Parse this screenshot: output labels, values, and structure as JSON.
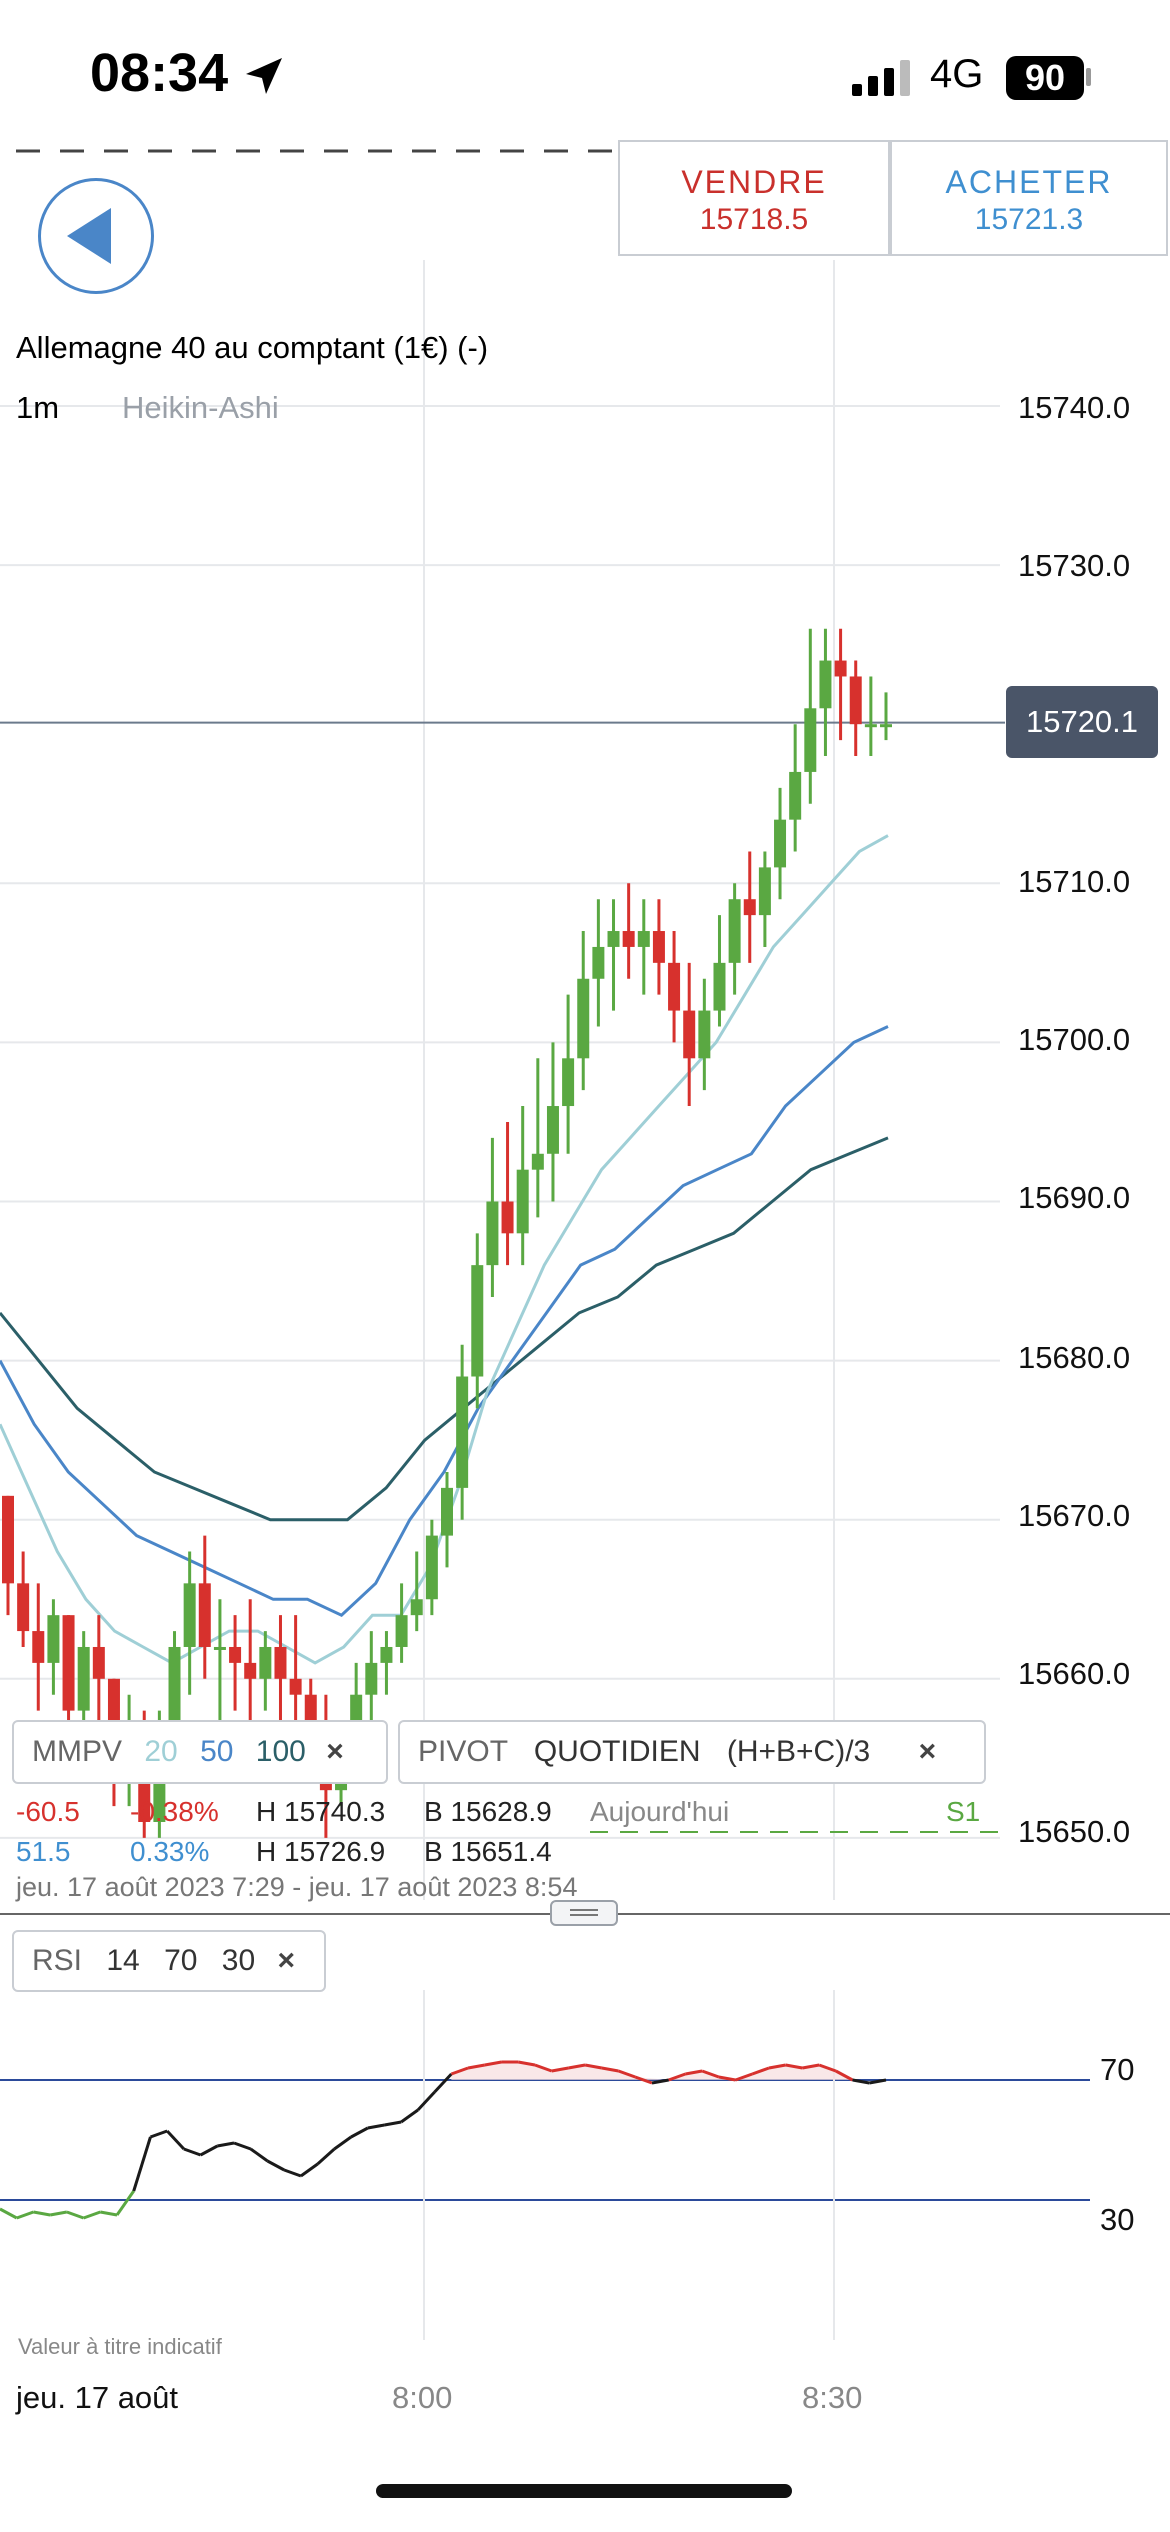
{
  "status_bar": {
    "time": "08:34",
    "network": "4G",
    "battery": "90"
  },
  "trade": {
    "sell_label": "VENDRE",
    "sell_price": "15718.5",
    "buy_label": "ACHETER",
    "buy_price": "15721.3"
  },
  "instrument": {
    "title": "Allemagne 40 au comptant (1€) (-)",
    "timeframe": "1m",
    "chart_type": "Heikin-Ashi"
  },
  "price_axis": [
    "15740.0",
    "15730.0",
    "15720.0",
    "15710.0",
    "15700.0",
    "15690.0",
    "15680.0",
    "15670.0",
    "15660.0",
    "15650.0"
  ],
  "current_price": "15720.1",
  "indicators": {
    "mmpv": {
      "label": "MMPV",
      "p1": "20",
      "p2": "50",
      "p3": "100",
      "close": "×"
    },
    "pivot": {
      "label": "PIVOT",
      "mode": "QUOTIDIEN",
      "formula": "(H+B+C)/3",
      "close": "×"
    },
    "rsi": {
      "label": "RSI",
      "p1": "14",
      "p2": "70",
      "p3": "30",
      "close": "×"
    }
  },
  "stats": {
    "row1": {
      "change": "-60.5",
      "pct": "-0.38%",
      "high": "H 15740.3",
      "low": "B 15628.9",
      "period": "Aujourd'hui",
      "pivot_level": "S1"
    },
    "row2": {
      "change": "51.5",
      "pct": "0.33%",
      "high": "H 15726.9",
      "low": "B 15651.4"
    },
    "range": "jeu. 17 août 2023 7:29 - jeu. 17 août 2023 8:54"
  },
  "rsi_axis": [
    "70",
    "30"
  ],
  "footer": {
    "disclaimer": "Valeur à titre indicatif",
    "date": "jeu. 17 août",
    "ticks": [
      "8:00",
      "8:30"
    ]
  },
  "colors": {
    "up": "#5aa842",
    "down": "#d7312d",
    "ma20": "#9fcfd6",
    "ma50": "#4a86c8",
    "ma100": "#2b5f68",
    "rsi_line": "#1a1a1a",
    "ref_line": "#2b4a9a"
  },
  "chart_data": {
    "type": "line",
    "title": "",
    "price_range": [
      15645,
      15745
    ],
    "candles_ohlc": [
      [
        15671.5,
        15671.5,
        15664,
        15666
      ],
      [
        15666,
        15668,
        15662,
        15663
      ],
      [
        15663,
        15666,
        15658,
        15661
      ],
      [
        15661,
        15665,
        15659,
        15664
      ],
      [
        15664,
        15664,
        15656,
        15658
      ],
      [
        15658,
        15663,
        15656,
        15662
      ],
      [
        15662,
        15664,
        15655,
        15660
      ],
      [
        15660,
        15660,
        15652,
        15655
      ],
      [
        15655,
        15659,
        15652,
        15657
      ],
      [
        15657,
        15658,
        15650,
        15651
      ],
      [
        15651,
        15658,
        15650,
        15656
      ],
      [
        15656,
        15663,
        15654,
        15662
      ],
      [
        15662,
        15668,
        15659,
        15666
      ],
      [
        15666,
        15669,
        15660,
        15662
      ],
      [
        15662,
        15665,
        15656,
        15662
      ],
      [
        15662,
        15664,
        15658,
        15661
      ],
      [
        15661,
        15665,
        15657,
        15660
      ],
      [
        15660,
        15663,
        15658,
        15662
      ],
      [
        15662,
        15664,
        15657,
        15660
      ],
      [
        15660,
        15664,
        15656,
        15659
      ],
      [
        15659,
        15660,
        15655,
        15657
      ],
      [
        15657,
        15659,
        15650,
        15653
      ],
      [
        15653,
        15656,
        15652,
        15655
      ],
      [
        15655,
        15661,
        15654,
        15659
      ],
      [
        15659,
        15663,
        15657,
        15661
      ],
      [
        15661,
        15663,
        15659,
        15662
      ],
      [
        15662,
        15666,
        15661,
        15664
      ],
      [
        15664,
        15668,
        15663,
        15665
      ],
      [
        15665,
        15670,
        15664,
        15669
      ],
      [
        15669,
        15673,
        15667,
        15672
      ],
      [
        15672,
        15681,
        15670,
        15679
      ],
      [
        15679,
        15688,
        15677,
        15686
      ],
      [
        15686,
        15694,
        15684,
        15690
      ],
      [
        15690,
        15695,
        15686,
        15688
      ],
      [
        15688,
        15696,
        15686,
        15692
      ],
      [
        15692,
        15699,
        15689,
        15693
      ],
      [
        15693,
        15700,
        15690,
        15696
      ],
      [
        15696,
        15703,
        15693,
        15699
      ],
      [
        15699,
        15707,
        15697,
        15704
      ],
      [
        15704,
        15709,
        15701,
        15706
      ],
      [
        15706,
        15709,
        15702,
        15707
      ],
      [
        15707,
        15710,
        15704,
        15706
      ],
      [
        15706,
        15709,
        15703,
        15707
      ],
      [
        15707,
        15709,
        15703,
        15705
      ],
      [
        15705,
        15707,
        15700,
        15702
      ],
      [
        15702,
        15705,
        15696,
        15699
      ],
      [
        15699,
        15704,
        15697,
        15702
      ],
      [
        15702,
        15708,
        15701,
        15705
      ],
      [
        15705,
        15710,
        15703,
        15709
      ],
      [
        15709,
        15712,
        15705,
        15708
      ],
      [
        15708,
        15712,
        15706,
        15711
      ],
      [
        15711,
        15716,
        15709,
        15714
      ],
      [
        15714,
        15720,
        15712,
        15717
      ],
      [
        15717,
        15726,
        15715,
        15721
      ],
      [
        15721,
        15726,
        15718,
        15724
      ],
      [
        15724,
        15726,
        15719,
        15723
      ],
      [
        15723,
        15724,
        15718,
        15720
      ],
      [
        15720,
        15723,
        15718,
        15720
      ],
      [
        15720,
        15722,
        15719,
        15720
      ]
    ],
    "ma20": [
      15676,
      15672,
      15668,
      15665,
      15663,
      15662,
      15661,
      15662,
      15663,
      15663,
      15662,
      15661,
      15662,
      15664,
      15664,
      15667,
      15672,
      15678,
      15682,
      15686,
      15689,
      15692,
      15694,
      15696,
      15698,
      15700,
      15703,
      15706,
      15708,
      15710,
      15712,
      15713
    ],
    "ma50": [
      15680,
      15676,
      15673,
      15671,
      15669,
      15668,
      15667,
      15666,
      15665,
      15665,
      15664,
      15666,
      15670,
      15673,
      15677,
      15680,
      15683,
      15686,
      15687,
      15689,
      15691,
      15692,
      15693,
      15696,
      15698,
      15700,
      15701
    ],
    "ma100": [
      15683,
      15680,
      15677,
      15675,
      15673,
      15672,
      15671,
      15670,
      15670,
      15670,
      15672,
      15675,
      15677,
      15679,
      15681,
      15683,
      15684,
      15686,
      15687,
      15688,
      15690,
      15692,
      15693,
      15694
    ],
    "rsi": [
      27,
      24,
      26,
      25,
      26,
      24,
      26,
      25,
      33,
      51,
      53,
      47,
      45,
      48,
      49,
      47,
      43,
      40,
      38,
      42,
      47,
      51,
      54,
      55,
      56,
      60,
      66,
      72,
      74,
      75,
      76,
      76,
      75,
      73,
      74,
      75,
      74,
      73,
      71,
      69,
      70,
      72,
      73,
      71,
      70,
      72,
      74,
      75,
      74,
      75,
      73,
      70,
      69,
      70
    ],
    "rsi_levels": [
      70,
      30
    ]
  }
}
